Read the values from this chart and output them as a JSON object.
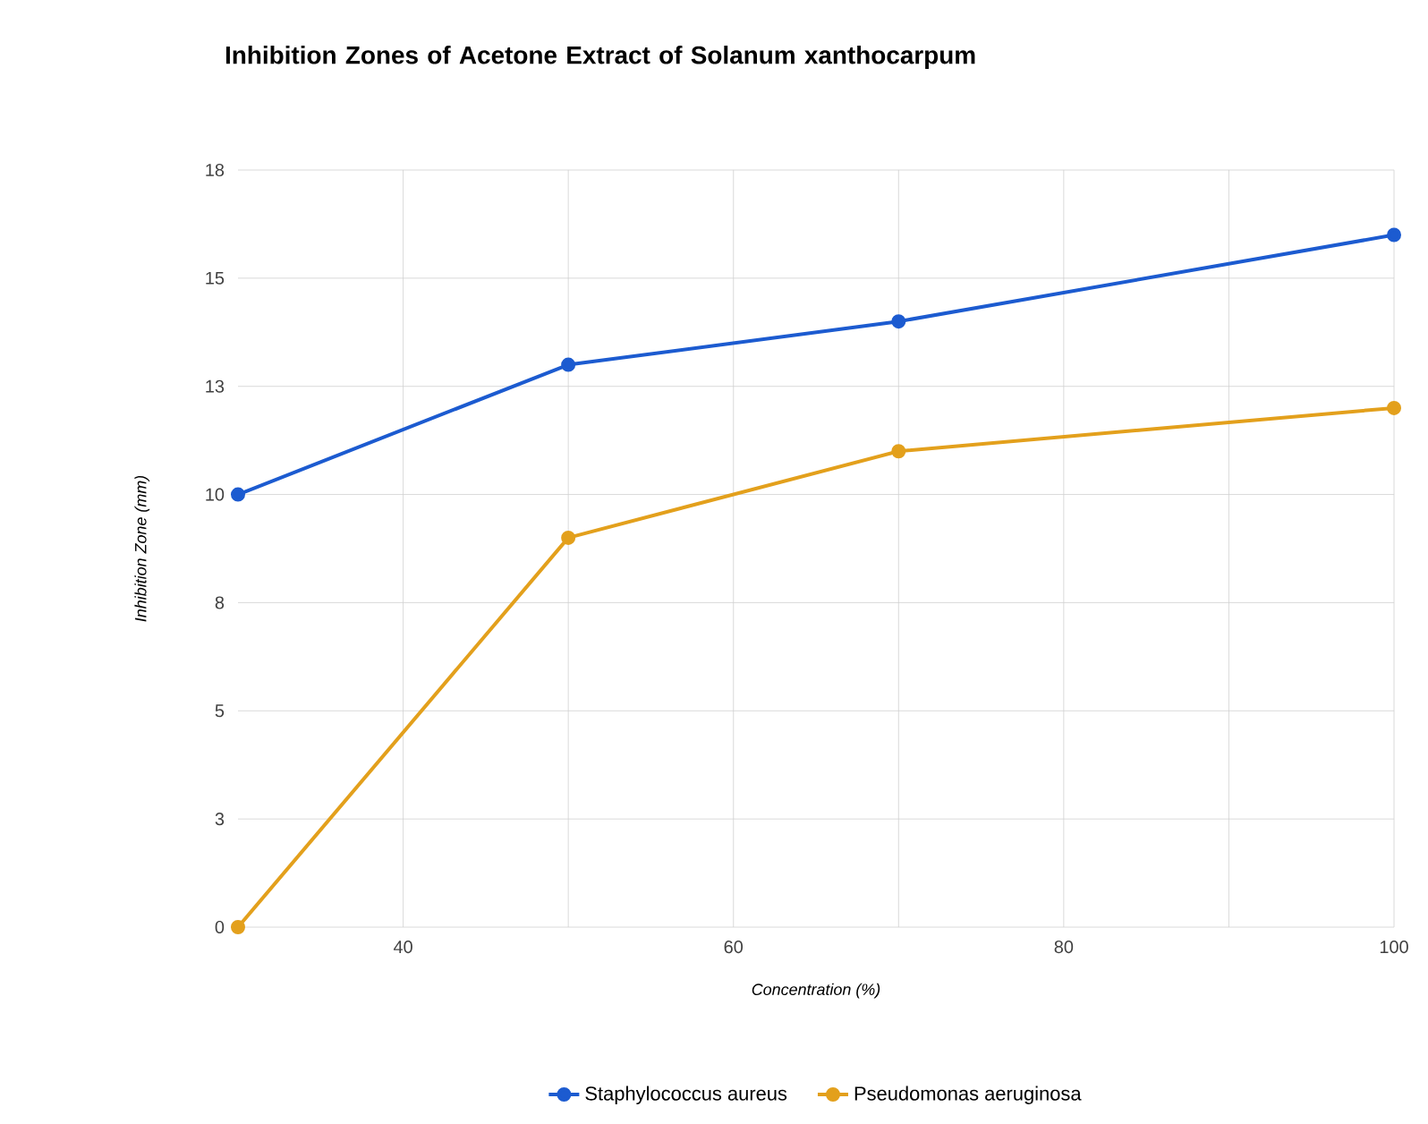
{
  "chart_data": {
    "type": "line",
    "title": "Inhibition Zones of Acetone Extract of Solanum xanthocarpum",
    "xlabel": "Concentration (%)",
    "ylabel": "Inhibition Zone (mm)",
    "x": [
      30,
      50,
      70,
      100
    ],
    "series": [
      {
        "name": "Staphylococcus aureus",
        "color": "#1c5bd0",
        "values": [
          10,
          13,
          14,
          16
        ]
      },
      {
        "name": "Pseudomonas aeruginosa",
        "color": "#e3a01c",
        "values": [
          0,
          9,
          11,
          12
        ]
      }
    ],
    "xlim": [
      30,
      100
    ],
    "xticks": [
      40,
      {
        "value": 50,
        "label": null
      },
      60,
      {
        "value": 70,
        "label": null
      },
      80,
      {
        "value": 90,
        "label": null
      },
      100
    ],
    "ylim": [
      0,
      17.5
    ],
    "yticks": [
      {
        "value": 0,
        "label": "0"
      },
      {
        "value": 2.5,
        "label": "3"
      },
      {
        "value": 5,
        "label": "5"
      },
      {
        "value": 7.5,
        "label": "8"
      },
      {
        "value": 10,
        "label": "10"
      },
      {
        "value": 12.5,
        "label": "13"
      },
      {
        "value": 15,
        "label": "15"
      },
      {
        "value": 17.5,
        "label": "18"
      }
    ],
    "grid": true,
    "legend": "bottom",
    "marker": "circle",
    "line_style": "solid"
  }
}
